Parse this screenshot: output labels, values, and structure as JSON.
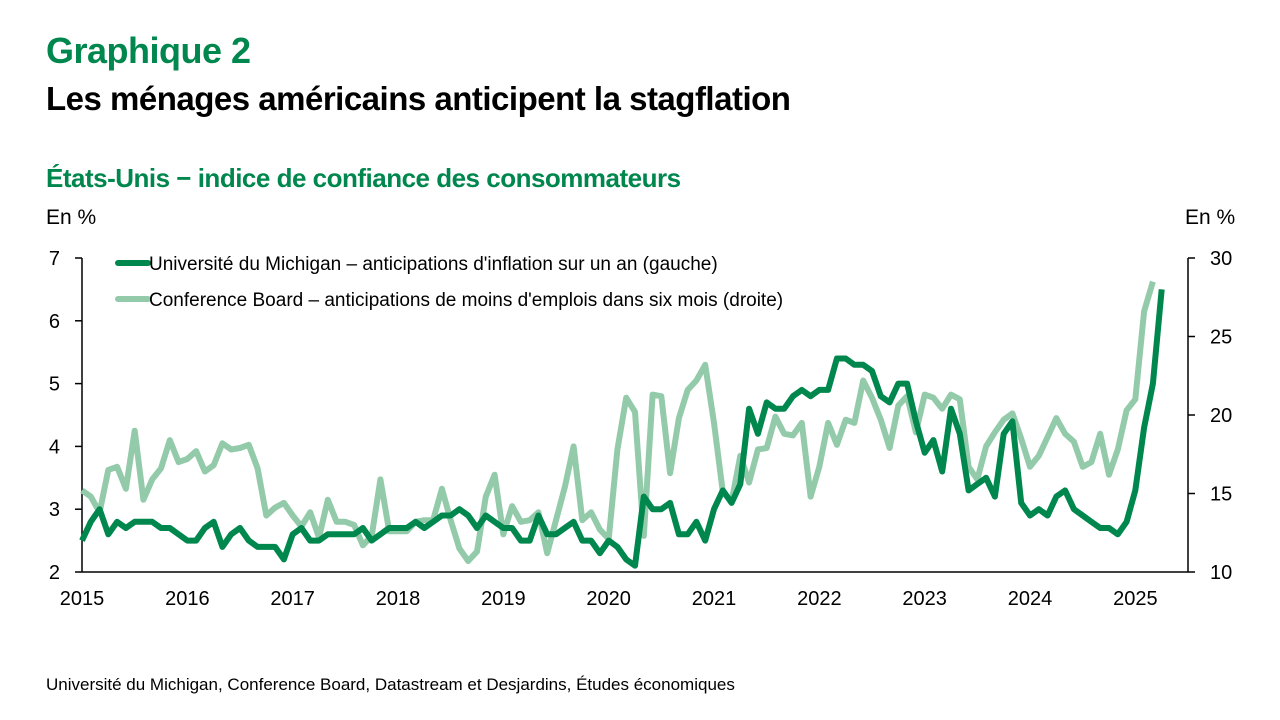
{
  "header": {
    "kicker": "Graphique 2",
    "title": "Les ménages américains anticipent la stagflation",
    "subtitle": "États-Unis − indice de confiance des consommateurs",
    "source": "Université du Michigan, Conference Board, Datastream et Desjardins, Études économiques"
  },
  "colors": {
    "michigan": "#00874e",
    "conference_board": "#93cbaa",
    "accent": "#00874e"
  },
  "chart_data": {
    "type": "line",
    "title": "États-Unis − indice de confiance des consommateurs",
    "ylabel_left": "En %",
    "ylabel_right": "En %",
    "xlabel": "",
    "x_start": "2015-01",
    "frequency": "monthly",
    "x_ticks": [
      "2015",
      "2016",
      "2017",
      "2018",
      "2019",
      "2020",
      "2021",
      "2022",
      "2023",
      "2024",
      "2025"
    ],
    "xlim": [
      "2015-01",
      "2025-12"
    ],
    "ylim_left": [
      2,
      7
    ],
    "yticks_left": [
      2,
      3,
      4,
      5,
      6,
      7
    ],
    "ylim_right": [
      10,
      30
    ],
    "yticks_right": [
      10,
      15,
      20,
      25,
      30
    ],
    "grid": false,
    "legend_position": "top-left",
    "series": [
      {
        "name": "Université du Michigan – anticipations d'inflation sur un an (gauche)",
        "axis": "left",
        "color": "#00874e",
        "values": [
          2.5,
          2.8,
          3.0,
          2.6,
          2.8,
          2.7,
          2.8,
          2.8,
          2.8,
          2.7,
          2.7,
          2.6,
          2.5,
          2.5,
          2.7,
          2.8,
          2.4,
          2.6,
          2.7,
          2.5,
          2.4,
          2.4,
          2.4,
          2.2,
          2.6,
          2.7,
          2.5,
          2.5,
          2.6,
          2.6,
          2.6,
          2.6,
          2.7,
          2.5,
          2.6,
          2.7,
          2.7,
          2.7,
          2.8,
          2.7,
          2.8,
          2.9,
          2.9,
          3.0,
          2.9,
          2.7,
          2.9,
          2.8,
          2.7,
          2.7,
          2.5,
          2.5,
          2.9,
          2.6,
          2.6,
          2.7,
          2.8,
          2.5,
          2.5,
          2.3,
          2.5,
          2.4,
          2.2,
          2.1,
          3.2,
          3.0,
          3.0,
          3.1,
          2.6,
          2.6,
          2.8,
          2.5,
          3.0,
          3.3,
          3.1,
          3.4,
          4.6,
          4.2,
          4.7,
          4.6,
          4.6,
          4.8,
          4.9,
          4.8,
          4.9,
          4.9,
          5.4,
          5.4,
          5.3,
          5.3,
          5.2,
          4.8,
          4.7,
          5.0,
          5.0,
          4.4,
          3.9,
          4.1,
          3.6,
          4.6,
          4.2,
          3.3,
          3.4,
          3.5,
          3.2,
          4.2,
          4.4,
          3.1,
          2.9,
          3.0,
          2.9,
          3.2,
          3.3,
          3.0,
          2.9,
          2.8,
          2.7,
          2.7,
          2.6,
          2.8,
          3.3,
          4.3,
          5.0,
          6.5
        ]
      },
      {
        "name": "Conference Board – anticipations de moins d'emplois dans six mois (droite)",
        "axis": "right",
        "color": "#93cbaa",
        "values": [
          15.2,
          14.8,
          13.8,
          16.5,
          16.7,
          15.3,
          19.0,
          14.6,
          15.9,
          16.6,
          18.4,
          17.0,
          17.2,
          17.7,
          16.4,
          16.8,
          18.2,
          17.8,
          17.9,
          18.1,
          16.6,
          13.6,
          14.1,
          14.4,
          13.6,
          12.9,
          13.8,
          12.2,
          14.6,
          13.2,
          13.2,
          13.0,
          11.7,
          12.3,
          15.9,
          12.6,
          12.6,
          12.6,
          13.2,
          13.3,
          13.3,
          15.3,
          13.3,
          11.5,
          10.7,
          11.3,
          14.8,
          16.2,
          12.4,
          14.2,
          13.2,
          13.3,
          13.8,
          11.2,
          13.3,
          15.4,
          18.0,
          13.3,
          13.8,
          12.7,
          12.1,
          17.8,
          21.1,
          20.2,
          12.3,
          21.3,
          21.2,
          16.3,
          19.8,
          21.6,
          22.2,
          23.2,
          19.5,
          15.1,
          14.5,
          17.4,
          15.7,
          17.8,
          17.9,
          19.9,
          18.8,
          18.7,
          19.5,
          14.8,
          16.7,
          19.5,
          18.1,
          19.7,
          19.5,
          22.2,
          21.1,
          19.7,
          17.9,
          20.6,
          21.2,
          18.9,
          21.3,
          21.1,
          20.4,
          21.3,
          21.0,
          16.7,
          15.9,
          18.0,
          18.9,
          19.7,
          20.1,
          18.5,
          16.7,
          17.4,
          18.6,
          19.8,
          18.8,
          18.3,
          16.7,
          17.0,
          18.8,
          16.2,
          17.8,
          20.3,
          21.0,
          26.6,
          28.5
        ]
      }
    ]
  }
}
